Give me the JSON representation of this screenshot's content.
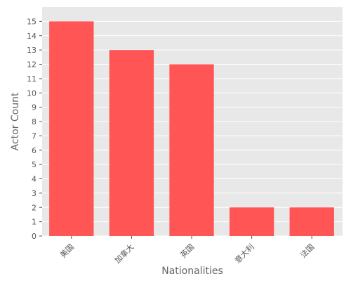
{
  "chart_data": {
    "type": "bar",
    "categories": [
      "美国",
      "加拿大",
      "英国",
      "意大利",
      "法国"
    ],
    "values": [
      15,
      13,
      12,
      2,
      2
    ],
    "xlabel": "Nationalities",
    "ylabel": "Actor Count",
    "ylim": [
      0,
      16
    ],
    "yticks": [
      0,
      1,
      2,
      3,
      4,
      5,
      6,
      7,
      8,
      9,
      10,
      11,
      12,
      13,
      14,
      15
    ],
    "grid": true,
    "colors": {
      "bar": "#ff5555",
      "background": "#e8e8e8",
      "grid": "#ffffff"
    }
  }
}
